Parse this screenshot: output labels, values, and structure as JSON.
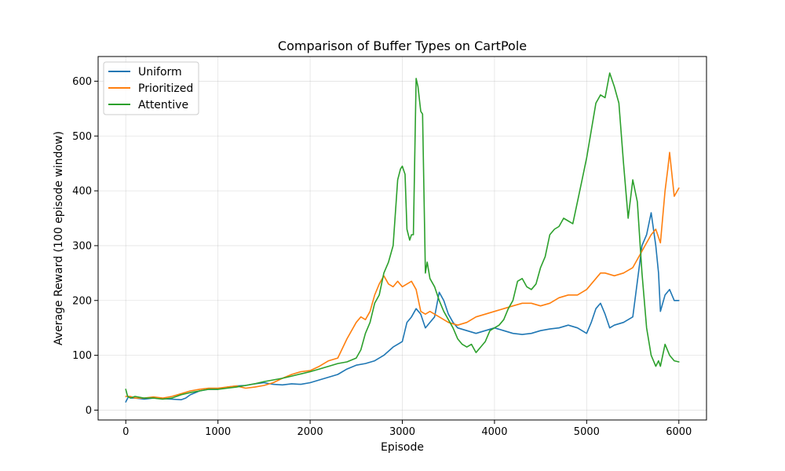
{
  "chart_data": {
    "type": "line",
    "title": "Comparison of Buffer Types on CartPole",
    "xlabel": "Episode",
    "ylabel": "Average Reward (100 episode window)",
    "xlim": [
      -300,
      6300
    ],
    "ylim": [
      -18,
      645
    ],
    "xticks": [
      0,
      1000,
      2000,
      3000,
      4000,
      5000,
      6000
    ],
    "yticks": [
      0,
      100,
      200,
      300,
      400,
      500,
      600
    ],
    "grid": true,
    "legend_position": "top-left",
    "series": [
      {
        "name": "Uniform",
        "color": "#1f77b4",
        "x": [
          0,
          30,
          60,
          100,
          200,
          300,
          400,
          500,
          600,
          650,
          700,
          800,
          900,
          1000,
          1100,
          1200,
          1300,
          1400,
          1500,
          1600,
          1700,
          1800,
          1900,
          2000,
          2100,
          2200,
          2300,
          2400,
          2500,
          2600,
          2700,
          2800,
          2900,
          3000,
          3050,
          3100,
          3150,
          3200,
          3250,
          3300,
          3350,
          3400,
          3450,
          3500,
          3550,
          3600,
          3700,
          3800,
          3900,
          4000,
          4100,
          4200,
          4300,
          4400,
          4500,
          4600,
          4700,
          4800,
          4900,
          5000,
          5050,
          5100,
          5150,
          5200,
          5250,
          5300,
          5400,
          5500,
          5600,
          5650,
          5700,
          5750,
          5780,
          5800,
          5850,
          5900,
          5950,
          6000
        ],
        "values": [
          15,
          25,
          22,
          22,
          20,
          22,
          21,
          20,
          19,
          22,
          28,
          35,
          38,
          38,
          42,
          44,
          45,
          48,
          50,
          47,
          46,
          48,
          47,
          50,
          55,
          60,
          65,
          75,
          82,
          85,
          90,
          100,
          115,
          125,
          160,
          170,
          185,
          175,
          150,
          160,
          170,
          215,
          200,
          175,
          160,
          150,
          145,
          140,
          145,
          150,
          145,
          140,
          138,
          140,
          145,
          148,
          150,
          155,
          150,
          140,
          160,
          185,
          195,
          175,
          150,
          155,
          160,
          170,
          300,
          320,
          360,
          300,
          250,
          180,
          210,
          220,
          200,
          200
        ]
      },
      {
        "name": "Prioritized",
        "color": "#ff7f0e",
        "x": [
          0,
          50,
          100,
          200,
          300,
          400,
          500,
          600,
          700,
          800,
          900,
          1000,
          1100,
          1200,
          1300,
          1400,
          1500,
          1600,
          1700,
          1800,
          1900,
          2000,
          2100,
          2200,
          2300,
          2400,
          2500,
          2550,
          2600,
          2650,
          2700,
          2750,
          2800,
          2850,
          2900,
          2950,
          3000,
          3100,
          3150,
          3200,
          3250,
          3300,
          3400,
          3500,
          3600,
          3700,
          3800,
          3900,
          4000,
          4100,
          4200,
          4300,
          4400,
          4500,
          4600,
          4700,
          4800,
          4900,
          5000,
          5100,
          5150,
          5200,
          5300,
          5400,
          5500,
          5600,
          5700,
          5750,
          5800,
          5850,
          5880,
          5900,
          5950,
          6000
        ],
        "values": [
          25,
          25,
          22,
          22,
          24,
          22,
          25,
          30,
          35,
          38,
          40,
          40,
          42,
          44,
          40,
          42,
          45,
          50,
          58,
          65,
          70,
          72,
          80,
          90,
          95,
          130,
          160,
          170,
          165,
          180,
          210,
          230,
          245,
          230,
          225,
          235,
          225,
          235,
          220,
          180,
          175,
          180,
          170,
          160,
          155,
          160,
          170,
          175,
          180,
          185,
          190,
          195,
          195,
          190,
          195,
          205,
          210,
          210,
          220,
          240,
          250,
          250,
          245,
          250,
          260,
          290,
          320,
          330,
          305,
          400,
          440,
          470,
          390,
          405
        ]
      },
      {
        "name": "Attentive",
        "color": "#2ca02c",
        "x": [
          0,
          20,
          50,
          100,
          200,
          300,
          400,
          500,
          600,
          700,
          800,
          900,
          1000,
          1100,
          1200,
          1300,
          1400,
          1500,
          1600,
          1700,
          1800,
          1900,
          2000,
          2100,
          2200,
          2300,
          2400,
          2500,
          2550,
          2600,
          2650,
          2700,
          2750,
          2800,
          2850,
          2900,
          2950,
          2980,
          3000,
          3030,
          3050,
          3080,
          3100,
          3120,
          3150,
          3170,
          3190,
          3200,
          3220,
          3250,
          3270,
          3300,
          3350,
          3400,
          3450,
          3500,
          3550,
          3600,
          3650,
          3700,
          3750,
          3800,
          3850,
          3900,
          3950,
          4000,
          4050,
          4100,
          4150,
          4200,
          4250,
          4300,
          4350,
          4400,
          4450,
          4500,
          4550,
          4600,
          4650,
          4700,
          4750,
          4800,
          4850,
          4900,
          4950,
          5000,
          5050,
          5100,
          5150,
          5200,
          5250,
          5280,
          5300,
          5350,
          5400,
          5450,
          5500,
          5550,
          5600,
          5650,
          5700,
          5750,
          5780,
          5800,
          5850,
          5900,
          5950,
          6000
        ],
        "values": [
          38,
          25,
          22,
          25,
          22,
          22,
          20,
          22,
          28,
          32,
          35,
          38,
          38,
          40,
          42,
          45,
          48,
          52,
          55,
          58,
          62,
          66,
          70,
          75,
          80,
          85,
          88,
          95,
          110,
          140,
          160,
          195,
          210,
          250,
          270,
          300,
          420,
          440,
          445,
          430,
          330,
          310,
          320,
          320,
          605,
          590,
          560,
          545,
          540,
          250,
          270,
          240,
          225,
          200,
          180,
          165,
          150,
          130,
          120,
          115,
          120,
          105,
          115,
          125,
          145,
          150,
          155,
          165,
          185,
          200,
          235,
          240,
          225,
          220,
          230,
          260,
          280,
          320,
          330,
          335,
          350,
          345,
          340,
          380,
          420,
          460,
          510,
          560,
          575,
          570,
          615,
          600,
          590,
          560,
          450,
          350,
          420,
          380,
          250,
          150,
          100,
          80,
          90,
          80,
          120,
          100,
          90,
          88
        ]
      }
    ]
  }
}
